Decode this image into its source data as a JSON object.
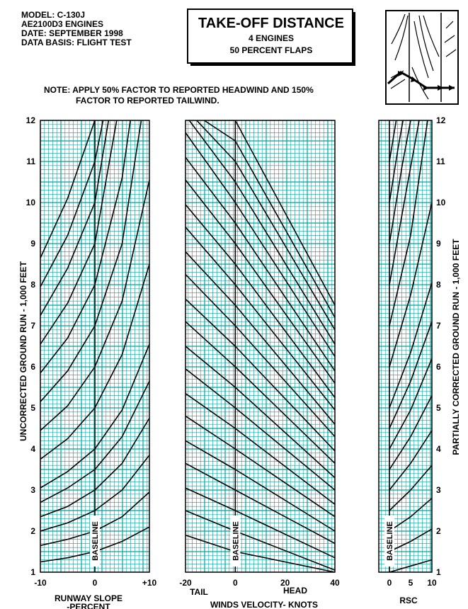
{
  "header": {
    "lines": [
      "MODEL: C-130J",
      "AE2100D3 ENGINES",
      "DATE: SEPTEMBER 1998",
      "DATA BASIS: FLIGHT TEST"
    ]
  },
  "title": {
    "main": "TAKE-OFF DISTANCE",
    "sub1": "4 ENGINES",
    "sub2": "50 PERCENT FLAPS"
  },
  "note": {
    "line1": "NOTE: APPLY 50% FACTOR TO REPORTED HEADWIND AND 150%",
    "line2": "FACTOR TO REPORTED TAILWIND."
  },
  "colors": {
    "grid": "#00A39E",
    "curve": "#000000",
    "panel_bg": "#FFFFFF"
  },
  "icons": {
    "thumbnail": "flow-chart-thumbnail-icon"
  },
  "chart_data": {
    "type": "line",
    "y_left_label": "UNCORRECTED GROUND RUN - 1,000 FEET",
    "y_right_label": "PARTIALLY CORRECTED GROUND RUN - 1,000 FEET",
    "ylim": [
      1,
      12
    ],
    "yticks": [
      "1",
      "2",
      "3",
      "4",
      "5",
      "6",
      "7",
      "8",
      "9",
      "10",
      "11",
      "12"
    ],
    "grid": true,
    "baseline_label": "BASELINE",
    "panels": [
      {
        "id": "slope",
        "xlabel_line1": "RUNWAY SLOPE",
        "xlabel_line2": "-PERCENT",
        "xlim": [
          -10,
          10
        ],
        "xticks": [
          {
            "value": -10,
            "label": "-10"
          },
          {
            "value": 0,
            "label": "0"
          },
          {
            "value": 10,
            "label": "+10"
          }
        ],
        "baseline_x": 0,
        "series": [
          {
            "y0": 1.5,
            "x": [
              -10,
              -5,
              0,
              5,
              10
            ],
            "y": [
              1.25,
              1.35,
              1.5,
              1.75,
              2.1
            ]
          },
          {
            "y0": 2.0,
            "x": [
              -10,
              -5,
              0,
              5,
              10
            ],
            "y": [
              1.65,
              1.8,
              2.0,
              2.35,
              2.95
            ]
          },
          {
            "y0": 2.5,
            "x": [
              -10,
              -5,
              0,
              5,
              10
            ],
            "y": [
              2.0,
              2.2,
              2.5,
              3.0,
              3.85
            ]
          },
          {
            "y0": 3.0,
            "x": [
              -10,
              -5,
              0,
              5,
              10
            ],
            "y": [
              2.35,
              2.6,
              3.0,
              3.65,
              4.75
            ]
          },
          {
            "y0": 3.5,
            "x": [
              -10,
              -5,
              0,
              5,
              10
            ],
            "y": [
              2.7,
              3.05,
              3.5,
              4.3,
              5.65
            ]
          },
          {
            "y0": 4.0,
            "x": [
              -10,
              -5,
              0,
              5,
              10
            ],
            "y": [
              3.05,
              3.45,
              4.0,
              4.95,
              6.55
            ]
          },
          {
            "y0": 5.0,
            "x": [
              -10,
              -5,
              0,
              5,
              10
            ],
            "y": [
              3.75,
              4.25,
              5.0,
              6.3,
              8.5
            ]
          },
          {
            "y0": 6.0,
            "x": [
              -10,
              -5,
              0,
              5,
              10
            ],
            "y": [
              4.45,
              5.05,
              6.0,
              7.6,
              10.55
            ]
          },
          {
            "y0": 7.0,
            "x": [
              -10,
              -5,
              0,
              5,
              8.5
            ],
            "y": [
              5.15,
              5.9,
              7.0,
              9.0,
              12.0
            ]
          },
          {
            "y0": 8.0,
            "x": [
              -10,
              -5,
              0,
              5,
              6.5
            ],
            "y": [
              5.85,
              6.7,
              8.0,
              10.6,
              12.0
            ]
          },
          {
            "y0": 9.0,
            "x": [
              -10,
              -5,
              0,
              4
            ],
            "y": [
              6.55,
              7.55,
              9.0,
              12.0
            ]
          },
          {
            "y0": 10.0,
            "x": [
              -10,
              -5,
              0,
              2.5
            ],
            "y": [
              7.25,
              8.4,
              10.0,
              12.0
            ]
          },
          {
            "y0": 11.0,
            "x": [
              -10,
              -5,
              0,
              1.5
            ],
            "y": [
              7.95,
              9.2,
              11.0,
              12.0
            ]
          },
          {
            "y0": 12.0,
            "x": [
              -10,
              -5,
              0
            ],
            "y": [
              8.65,
              10.1,
              12.0
            ]
          }
        ]
      },
      {
        "id": "wind",
        "xlabel_line1": "WINDS  VELOCITY- KNOTS",
        "tail_label": "TAIL",
        "head_label": "HEAD",
        "xlim": [
          -20,
          40
        ],
        "xticks": [
          {
            "value": -20,
            "label": "-20"
          },
          {
            "value": 0,
            "label": "0"
          },
          {
            "value": 20,
            "label": "20"
          },
          {
            "value": 40,
            "label": "40"
          }
        ],
        "baseline_x": 0,
        "series": [
          {
            "y0": 1.5,
            "x": [
              -20,
              0,
              40
            ],
            "y": [
              1.9,
              1.5,
              1.0
            ]
          },
          {
            "y0": 2.0,
            "x": [
              -20,
              0,
              40
            ],
            "y": [
              2.5,
              2.0,
              1.05
            ]
          },
          {
            "y0": 2.5,
            "x": [
              -20,
              0,
              40
            ],
            "y": [
              3.05,
              2.5,
              1.35
            ]
          },
          {
            "y0": 3.0,
            "x": [
              -20,
              0,
              40
            ],
            "y": [
              3.65,
              3.0,
              1.7
            ]
          },
          {
            "y0": 3.5,
            "x": [
              -20,
              0,
              40
            ],
            "y": [
              4.2,
              3.5,
              2.0
            ]
          },
          {
            "y0": 4.0,
            "x": [
              -20,
              0,
              40
            ],
            "y": [
              4.8,
              4.0,
              2.35
            ]
          },
          {
            "y0": 4.5,
            "x": [
              -20,
              0,
              40
            ],
            "y": [
              5.35,
              4.5,
              2.65
            ]
          },
          {
            "y0": 5.0,
            "x": [
              -20,
              0,
              40
            ],
            "y": [
              5.95,
              5.0,
              3.0
            ]
          },
          {
            "y0": 5.5,
            "x": [
              -20,
              0,
              40
            ],
            "y": [
              6.5,
              5.5,
              3.3
            ]
          },
          {
            "y0": 6.0,
            "x": [
              -20,
              0,
              40
            ],
            "y": [
              7.1,
              6.0,
              3.65
            ]
          },
          {
            "y0": 6.5,
            "x": [
              -20,
              0,
              40
            ],
            "y": [
              7.65,
              6.5,
              3.95
            ]
          },
          {
            "y0": 7.0,
            "x": [
              -20,
              0,
              40
            ],
            "y": [
              8.25,
              7.0,
              4.3
            ]
          },
          {
            "y0": 7.5,
            "x": [
              -20,
              0,
              40
            ],
            "y": [
              8.8,
              7.5,
              4.6
            ]
          },
          {
            "y0": 8.0,
            "x": [
              -20,
              0,
              40
            ],
            "y": [
              9.4,
              8.0,
              4.95
            ]
          },
          {
            "y0": 8.5,
            "x": [
              -20,
              0,
              40
            ],
            "y": [
              9.95,
              8.5,
              5.25
            ]
          },
          {
            "y0": 9.0,
            "x": [
              -20,
              0,
              40
            ],
            "y": [
              10.55,
              9.0,
              5.6
            ]
          },
          {
            "y0": 9.5,
            "x": [
              -20,
              0,
              40
            ],
            "y": [
              11.1,
              9.5,
              5.9
            ]
          },
          {
            "y0": 10.0,
            "x": [
              -20,
              0,
              40
            ],
            "y": [
              11.7,
              10.0,
              6.25
            ]
          },
          {
            "y0": 10.5,
            "x": [
              -18.5,
              0,
              40
            ],
            "y": [
              12.0,
              10.5,
              6.55
            ]
          },
          {
            "y0": 11.0,
            "x": [
              -15.5,
              0,
              40
            ],
            "y": [
              12.0,
              11.0,
              6.9
            ]
          },
          {
            "y0": 11.5,
            "x": [
              -12.5,
              0,
              40
            ],
            "y": [
              12.0,
              11.5,
              7.2
            ]
          },
          {
            "y0": 12.0,
            "x": [
              -9.5,
              0,
              40
            ],
            "y": [
              12.0,
              12.0,
              7.5
            ]
          }
        ]
      },
      {
        "id": "rsc",
        "xlabel_line1": "RSC",
        "xlim": [
          -2.5,
          10
        ],
        "xticks": [
          {
            "value": 0,
            "label": "0"
          },
          {
            "value": 5,
            "label": "5"
          },
          {
            "value": 10,
            "label": "10"
          }
        ],
        "baseline_x": 0,
        "series": [
          {
            "y0": 1.0,
            "x": [
              0,
              5,
              10
            ],
            "y": [
              1.0,
              1.15,
              1.3
            ]
          },
          {
            "y0": 1.5,
            "x": [
              0,
              5,
              10
            ],
            "y": [
              1.5,
              1.75,
              2.05
            ]
          },
          {
            "y0": 2.0,
            "x": [
              0,
              5,
              10
            ],
            "y": [
              2.0,
              2.35,
              2.8
            ]
          },
          {
            "y0": 2.5,
            "x": [
              0,
              5,
              10
            ],
            "y": [
              2.5,
              3.0,
              3.6
            ]
          },
          {
            "y0": 3.0,
            "x": [
              0,
              5,
              10
            ],
            "y": [
              3.0,
              3.65,
              4.45
            ]
          },
          {
            "y0": 3.5,
            "x": [
              0,
              5,
              10
            ],
            "y": [
              3.5,
              4.3,
              5.3
            ]
          },
          {
            "y0": 4.0,
            "x": [
              0,
              5,
              10
            ],
            "y": [
              4.0,
              4.95,
              6.2
            ]
          },
          {
            "y0": 4.5,
            "x": [
              0,
              5,
              10
            ],
            "y": [
              4.5,
              5.65,
              7.1
            ]
          },
          {
            "y0": 5.0,
            "x": [
              0,
              5,
              10
            ],
            "y": [
              5.0,
              6.35,
              8.05
            ]
          },
          {
            "y0": 6.0,
            "x": [
              0,
              5,
              10
            ],
            "y": [
              6.0,
              7.75,
              10.0
            ]
          },
          {
            "y0": 7.0,
            "x": [
              0,
              5,
              9
            ],
            "y": [
              7.0,
              9.2,
              12.0
            ]
          },
          {
            "y0": 8.0,
            "x": [
              0,
              4,
              7
            ],
            "y": [
              8.0,
              10.3,
              12.0
            ]
          },
          {
            "y0": 9.0,
            "x": [
              0,
              3,
              5
            ],
            "y": [
              9.0,
              10.9,
              12.0
            ]
          },
          {
            "y0": 10.0,
            "x": [
              0,
              2,
              3.2
            ],
            "y": [
              10.0,
              11.3,
              12.0
            ]
          },
          {
            "y0": 11.0,
            "x": [
              0,
              1.6
            ],
            "y": [
              11.0,
              12.0
            ]
          }
        ]
      }
    ]
  }
}
